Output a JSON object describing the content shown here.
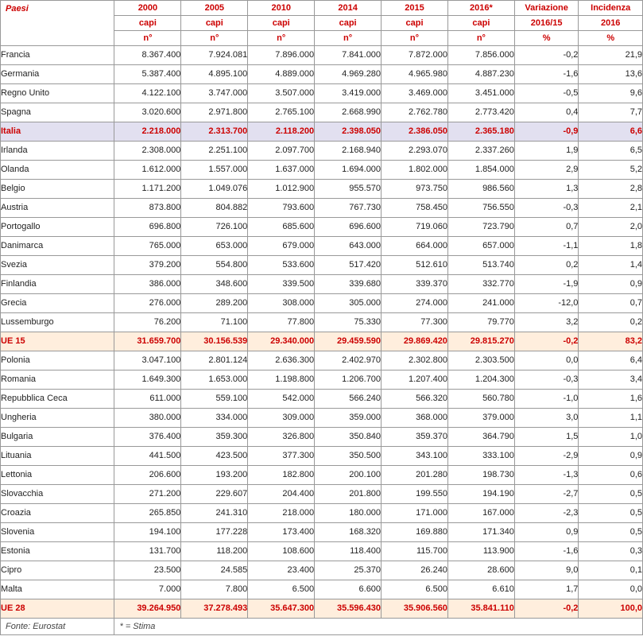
{
  "header": {
    "paesi": "Paesi",
    "years": [
      "2000",
      "2005",
      "2010",
      "2014",
      "2015",
      "2016*"
    ],
    "sub1": "capi",
    "sub2": "n°",
    "var_col": [
      "Variazione",
      "2016/15",
      "%"
    ],
    "inc_col": [
      "Incidenza",
      "2016",
      "%"
    ]
  },
  "rows": [
    {
      "t": "d",
      "label": "Francia",
      "v": [
        "8.367.400",
        "7.924.081",
        "7.896.000",
        "7.841.000",
        "7.872.000",
        "7.856.000",
        "-0,2",
        "21,9"
      ]
    },
    {
      "t": "d",
      "label": "Germania",
      "v": [
        "5.387.400",
        "4.895.100",
        "4.889.000",
        "4.969.280",
        "4.965.980",
        "4.887.230",
        "-1,6",
        "13,6"
      ]
    },
    {
      "t": "d",
      "label": "Regno Unito",
      "v": [
        "4.122.100",
        "3.747.000",
        "3.507.000",
        "3.419.000",
        "3.469.000",
        "3.451.000",
        "-0,5",
        "9,6"
      ]
    },
    {
      "t": "d",
      "label": "Spagna",
      "v": [
        "3.020.600",
        "2.971.800",
        "2.765.100",
        "2.668.990",
        "2.762.780",
        "2.773.420",
        "0,4",
        "7,7"
      ]
    },
    {
      "t": "it",
      "label": "Italia",
      "v": [
        "2.218.000",
        "2.313.700",
        "2.118.200",
        "2.398.050",
        "2.386.050",
        "2.365.180",
        "-0,9",
        "6,6"
      ]
    },
    {
      "t": "d",
      "label": "Irlanda",
      "v": [
        "2.308.000",
        "2.251.100",
        "2.097.700",
        "2.168.940",
        "2.293.070",
        "2.337.260",
        "1,9",
        "6,5"
      ]
    },
    {
      "t": "d",
      "label": "Olanda",
      "v": [
        "1.612.000",
        "1.557.000",
        "1.637.000",
        "1.694.000",
        "1.802.000",
        "1.854.000",
        "2,9",
        "5,2"
      ]
    },
    {
      "t": "d",
      "label": "Belgio",
      "v": [
        "1.171.200",
        "1.049.076",
        "1.012.900",
        "955.570",
        "973.750",
        "986.560",
        "1,3",
        "2,8"
      ]
    },
    {
      "t": "d",
      "label": "Austria",
      "v": [
        "873.800",
        "804.882",
        "793.600",
        "767.730",
        "758.450",
        "756.550",
        "-0,3",
        "2,1"
      ]
    },
    {
      "t": "d",
      "label": "Portogallo",
      "v": [
        "696.800",
        "726.100",
        "685.600",
        "696.600",
        "719.060",
        "723.790",
        "0,7",
        "2,0"
      ]
    },
    {
      "t": "d",
      "label": "Danimarca",
      "v": [
        "765.000",
        "653.000",
        "679.000",
        "643.000",
        "664.000",
        "657.000",
        "-1,1",
        "1,8"
      ]
    },
    {
      "t": "d",
      "label": "Svezia",
      "v": [
        "379.200",
        "554.800",
        "533.600",
        "517.420",
        "512.610",
        "513.740",
        "0,2",
        "1,4"
      ]
    },
    {
      "t": "d",
      "label": "Finlandia",
      "v": [
        "386.000",
        "348.600",
        "339.500",
        "339.680",
        "339.370",
        "332.770",
        "-1,9",
        "0,9"
      ]
    },
    {
      "t": "d",
      "label": "Grecia",
      "v": [
        "276.000",
        "289.200",
        "308.000",
        "305.000",
        "274.000",
        "241.000",
        "-12,0",
        "0,7"
      ]
    },
    {
      "t": "d",
      "label": "Lussemburgo",
      "v": [
        "76.200",
        "71.100",
        "77.800",
        "75.330",
        "77.300",
        "79.770",
        "3,2",
        "0,2"
      ]
    },
    {
      "t": "ue",
      "label": "UE 15",
      "v": [
        "31.659.700",
        "30.156.539",
        "29.340.000",
        "29.459.590",
        "29.869.420",
        "29.815.270",
        "-0,2",
        "83,2"
      ]
    },
    {
      "t": "d",
      "label": "Polonia",
      "v": [
        "3.047.100",
        "2.801.124",
        "2.636.300",
        "2.402.970",
        "2.302.800",
        "2.303.500",
        "0,0",
        "6,4"
      ]
    },
    {
      "t": "d",
      "label": "Romania",
      "v": [
        "1.649.300",
        "1.653.000",
        "1.198.800",
        "1.206.700",
        "1.207.400",
        "1.204.300",
        "-0,3",
        "3,4"
      ]
    },
    {
      "t": "d",
      "label": "Repubblica Ceca",
      "v": [
        "611.000",
        "559.100",
        "542.000",
        "566.240",
        "566.320",
        "560.780",
        "-1,0",
        "1,6"
      ]
    },
    {
      "t": "d",
      "label": "Ungheria",
      "v": [
        "380.000",
        "334.000",
        "309.000",
        "359.000",
        "368.000",
        "379.000",
        "3,0",
        "1,1"
      ]
    },
    {
      "t": "d",
      "label": "Bulgaria",
      "v": [
        "376.400",
        "359.300",
        "326.800",
        "350.840",
        "359.370",
        "364.790",
        "1,5",
        "1,0"
      ]
    },
    {
      "t": "d",
      "label": "Lituania",
      "v": [
        "441.500",
        "423.500",
        "377.300",
        "350.500",
        "343.100",
        "333.100",
        "-2,9",
        "0,9"
      ]
    },
    {
      "t": "d",
      "label": "Lettonia",
      "v": [
        "206.600",
        "193.200",
        "182.800",
        "200.100",
        "201.280",
        "198.730",
        "-1,3",
        "0,6"
      ]
    },
    {
      "t": "d",
      "label": "Slovacchia",
      "v": [
        "271.200",
        "229.607",
        "204.400",
        "201.800",
        "199.550",
        "194.190",
        "-2,7",
        "0,5"
      ]
    },
    {
      "t": "d",
      "label": "Croazia",
      "v": [
        "265.850",
        "241.310",
        "218.000",
        "180.000",
        "171.000",
        "167.000",
        "-2,3",
        "0,5"
      ]
    },
    {
      "t": "d",
      "label": "Slovenia",
      "v": [
        "194.100",
        "177.228",
        "173.400",
        "168.320",
        "169.880",
        "171.340",
        "0,9",
        "0,5"
      ]
    },
    {
      "t": "d",
      "label": "Estonia",
      "v": [
        "131.700",
        "118.200",
        "108.600",
        "118.400",
        "115.700",
        "113.900",
        "-1,6",
        "0,3"
      ]
    },
    {
      "t": "d",
      "label": "Cipro",
      "v": [
        "23.500",
        "24.585",
        "23.400",
        "25.370",
        "26.240",
        "28.600",
        "9,0",
        "0,1"
      ]
    },
    {
      "t": "d",
      "label": "Malta",
      "v": [
        "7.000",
        "7.800",
        "6.500",
        "6.600",
        "6.500",
        "6.610",
        "1,7",
        "0,0"
      ]
    },
    {
      "t": "ue",
      "label": "UE 28",
      "v": [
        "39.264.950",
        "37.278.493",
        "35.647.300",
        "35.596.430",
        "35.906.560",
        "35.841.110",
        "-0,2",
        "100,0"
      ]
    }
  ],
  "footer": {
    "source": "Fonte: Eurostat",
    "note": "* = Stima"
  }
}
